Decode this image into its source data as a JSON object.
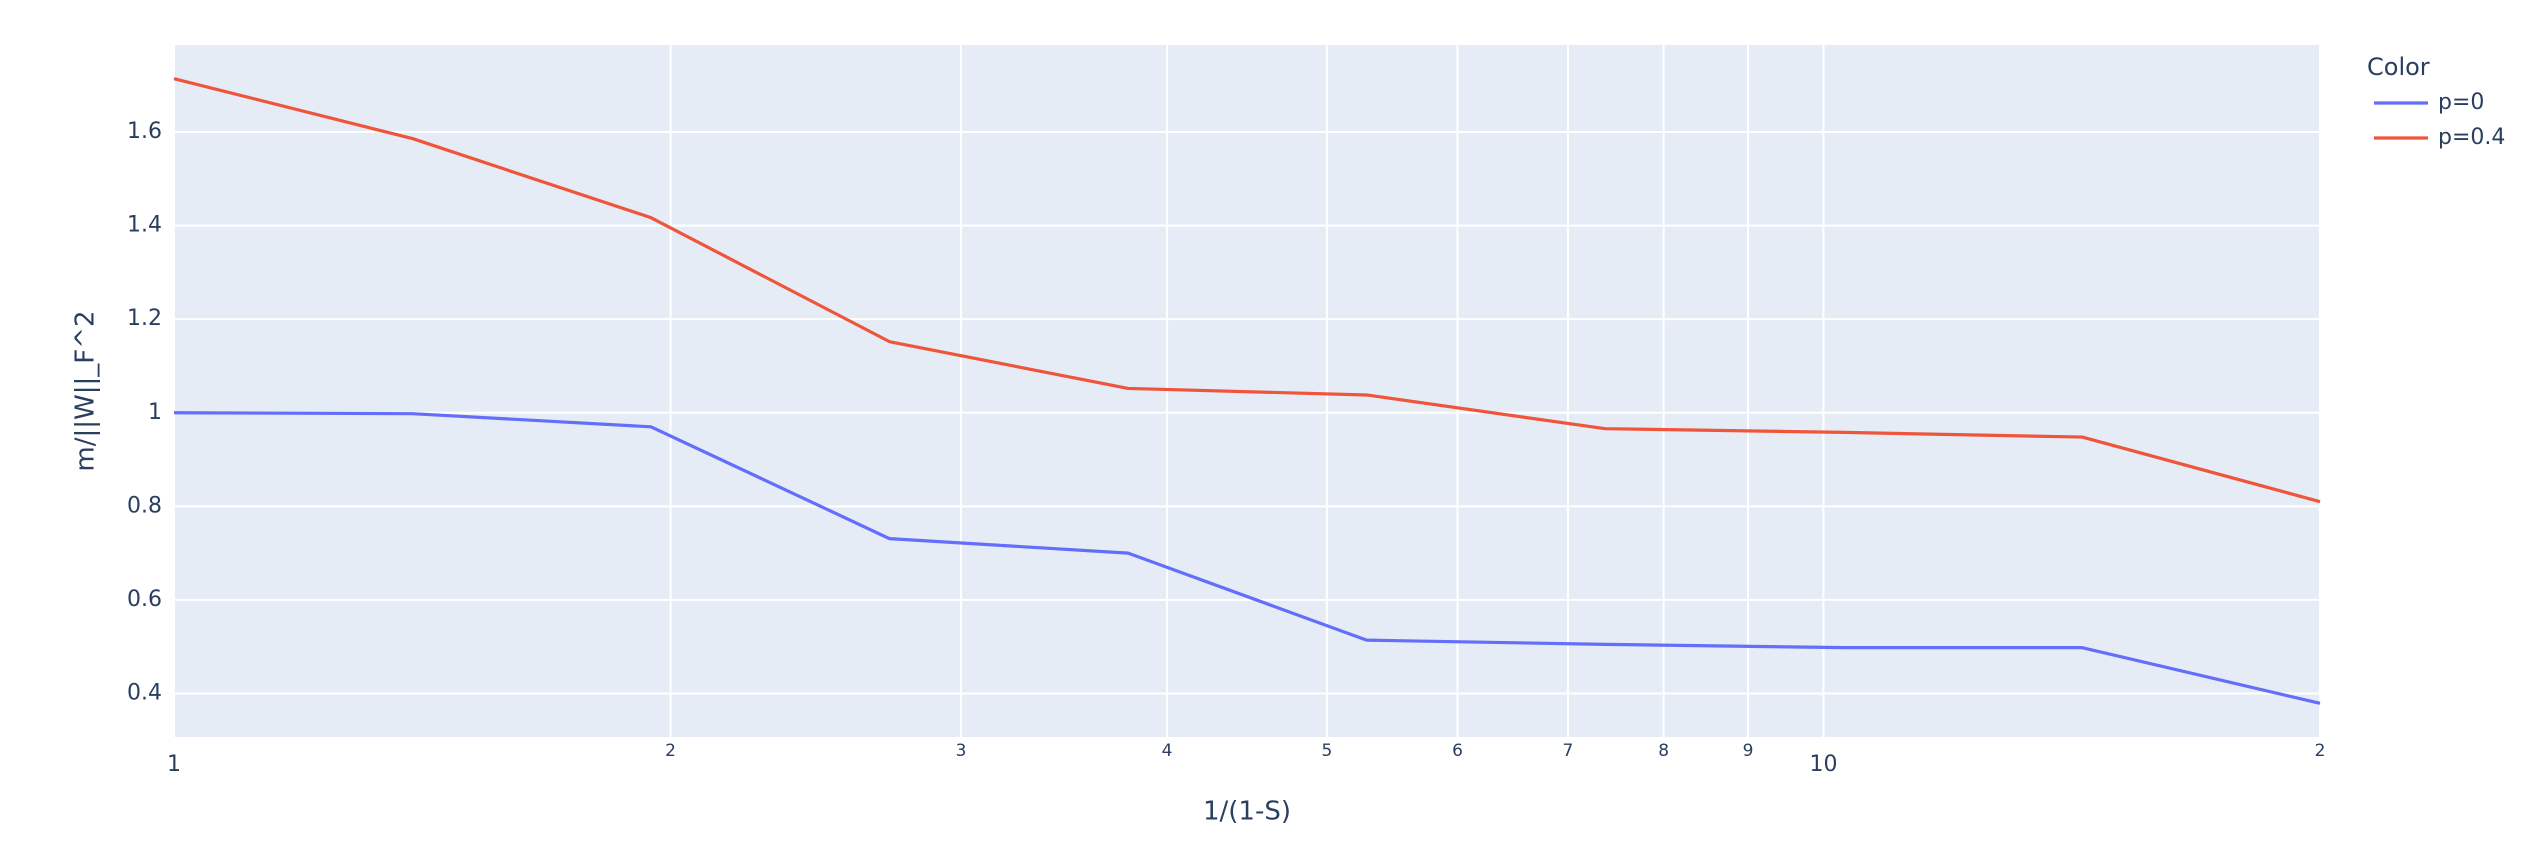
{
  "chart_data": {
    "type": "line",
    "x_label": "1/(1-S)",
    "y_label": "m/||W||_F^2",
    "x": [
      1,
      1.395,
      1.946,
      2.715,
      3.788,
      5.285,
      7.373,
      10.29,
      14.35,
      20
    ],
    "series": [
      {
        "name": "p=0",
        "color": "#636efa",
        "values": [
          1.0,
          0.998,
          0.97,
          0.731,
          0.7,
          0.514,
          0.505,
          0.498,
          0.498,
          0.379
        ]
      },
      {
        "name": "p=0.4",
        "color": "#ef553b",
        "values": [
          1.714,
          1.586,
          1.417,
          1.152,
          1.052,
          1.038,
          0.966,
          0.958,
          0.948,
          0.81
        ]
      }
    ],
    "legend_title": "Color",
    "xlim": [
      1,
      20
    ],
    "ylim": [
      0.307,
      1.786
    ],
    "x_log": true,
    "xticks": [
      1,
      2,
      3,
      4,
      5,
      6,
      7,
      8,
      9,
      10,
      {
        "value": 20,
        "label": "2"
      }
    ],
    "yticks": [
      0.4,
      0.6,
      0.8,
      1,
      1.2,
      1.4,
      1.6
    ],
    "grid": true,
    "legend_position": "right"
  }
}
